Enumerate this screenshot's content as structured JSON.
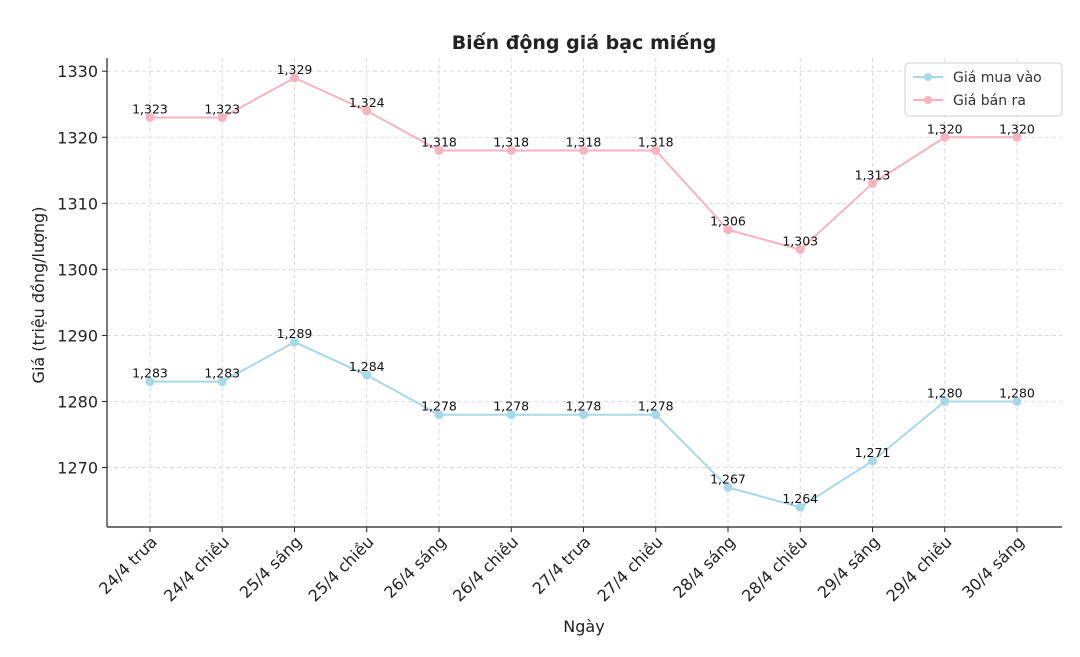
{
  "chart_data": {
    "type": "line",
    "title": "Biến động giá bạc miếng",
    "xlabel": "Ngày",
    "ylabel": "Giá (triệu đồng/lượng)",
    "categories": [
      "24/4 trưa",
      "24/4 chiều",
      "25/4 sáng",
      "25/4 chiều",
      "26/4 sáng",
      "26/4 chiều",
      "27/4 trưa",
      "27/4 chiều",
      "28/4 sáng",
      "28/4 chiều",
      "29/4 sáng",
      "29/4 chiều",
      "30/4 sáng"
    ],
    "series": [
      {
        "name": "Giá mua vào",
        "color": "#a8d8e6",
        "values": [
          1283,
          1283,
          1289,
          1284,
          1278,
          1278,
          1278,
          1278,
          1267,
          1264,
          1271,
          1280,
          1280
        ],
        "value_labels": [
          "1,283",
          "1,283",
          "1,289",
          "1,284",
          "1,278",
          "1,278",
          "1,278",
          "1,278",
          "1,267",
          "1,264",
          "1,271",
          "1,280",
          "1,280"
        ]
      },
      {
        "name": "Giá bán ra",
        "color": "#f7b3c0",
        "values": [
          1323,
          1323,
          1329,
          1324,
          1318,
          1318,
          1318,
          1318,
          1306,
          1303,
          1313,
          1320,
          1320
        ],
        "value_labels": [
          "1,323",
          "1,323",
          "1,329",
          "1,324",
          "1,318",
          "1,318",
          "1,318",
          "1,318",
          "1,306",
          "1,303",
          "1,313",
          "1,320",
          "1,320"
        ]
      }
    ],
    "ylim": [
      1261,
      1332
    ],
    "yticks": [
      1270,
      1280,
      1290,
      1300,
      1310,
      1320,
      1330
    ],
    "grid": true,
    "legend_position": "top-right"
  }
}
